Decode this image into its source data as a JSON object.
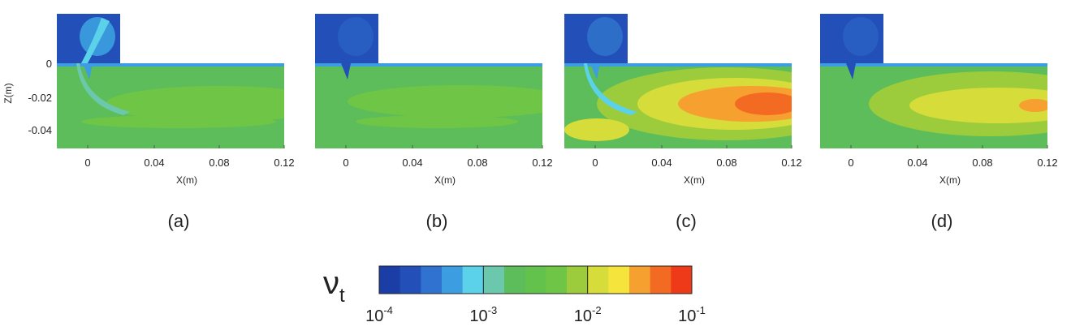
{
  "panels": [
    {
      "label": "(a)"
    },
    {
      "label": "(b)"
    },
    {
      "label": "(c)"
    },
    {
      "label": "(d)"
    }
  ],
  "axes": {
    "x_label": "X(m)",
    "z_label": "Z(m)",
    "x_ticks": [
      "0",
      "0.04",
      "0.08",
      "0.12"
    ],
    "z_ticks": [
      "0",
      "-0.02",
      "-0.04"
    ]
  },
  "colorbar": {
    "symbol": "ν",
    "subscript": "t",
    "colors": [
      "#1b3ea6",
      "#2350b8",
      "#2f72d0",
      "#3c9ee0",
      "#5bd2ea",
      "#6cc8ac",
      "#5cbd5a",
      "#63c24c",
      "#6fc646",
      "#9ccc3c",
      "#d6dc3a",
      "#f4e43c",
      "#f6a030",
      "#f36a22",
      "#ee3a18"
    ],
    "tick_labels": [
      {
        "base": "10",
        "exponent": "-4"
      },
      {
        "base": "10",
        "exponent": "-3"
      },
      {
        "base": "10",
        "exponent": "-2"
      },
      {
        "base": "10",
        "exponent": "-1"
      }
    ]
  }
}
